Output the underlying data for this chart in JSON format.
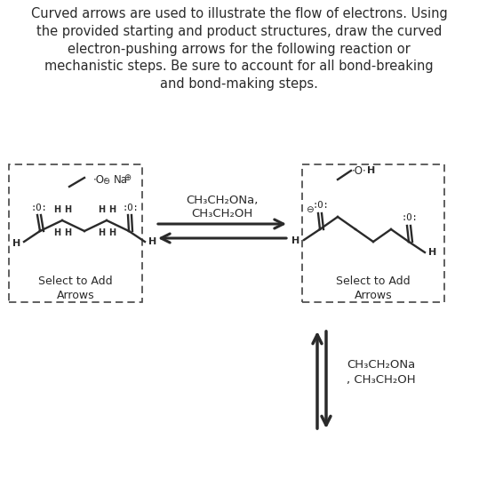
{
  "title_text": "Curved arrows are used to illustrate the flow of electrons. Using\nthe provided starting and product structures, draw the curved\nelectron-pushing arrows for the following reaction or\nmechanistic steps. Be sure to account for all bond-breaking\nand bond-making steps.",
  "title_fontsize": 10.5,
  "bg_color": "#ffffff",
  "dark": "#2a2a2a",
  "reagent_top_line1": "CH₃CH₂ONa,",
  "reagent_top_line2": "CH₃CH₂OH",
  "reagent_bot_line1": "CH₃CH₂ONa",
  "reagent_bot_line2": ", CH₃CH₂OH",
  "select_text": "Select to Add\nArrows"
}
